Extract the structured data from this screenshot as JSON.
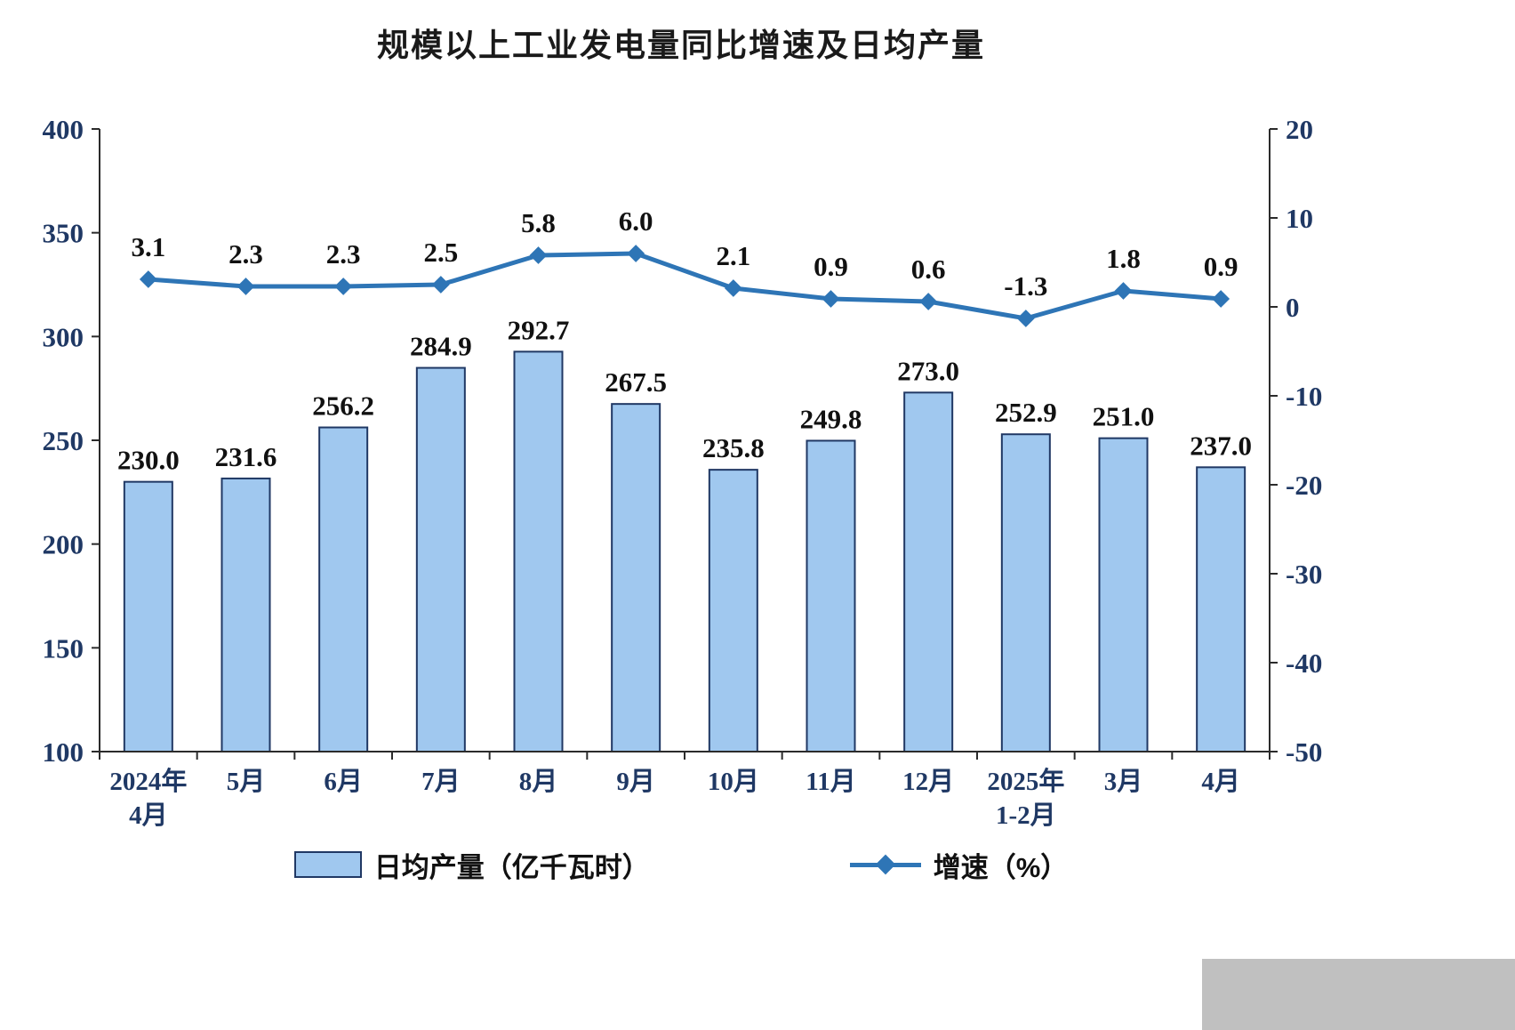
{
  "chart_data": {
    "type": "combo-bar-line",
    "title": "规模以上工业发电量同比增速及日均产量",
    "categories": [
      [
        "2024年",
        "4月"
      ],
      [
        "5月"
      ],
      [
        "6月"
      ],
      [
        "7月"
      ],
      [
        "8月"
      ],
      [
        "9月"
      ],
      [
        "10月"
      ],
      [
        "11月"
      ],
      [
        "12月"
      ],
      [
        "2025年",
        "1-2月"
      ],
      [
        "3月"
      ],
      [
        "4月"
      ]
    ],
    "series": [
      {
        "name": "日均产量（亿千瓦时）",
        "type": "bar",
        "axis": "left",
        "values": [
          230.0,
          231.6,
          256.2,
          284.9,
          292.7,
          267.5,
          235.8,
          249.8,
          273.0,
          252.9,
          251.0,
          237.0
        ]
      },
      {
        "name": "增速（%）",
        "type": "line",
        "axis": "right",
        "values": [
          3.1,
          2.3,
          2.3,
          2.5,
          5.8,
          6.0,
          2.1,
          0.9,
          0.6,
          -1.3,
          1.8,
          0.9
        ]
      }
    ],
    "left_axis": {
      "min": 100,
      "max": 400,
      "step": 50
    },
    "right_axis": {
      "min": -50,
      "max": 20,
      "step": 10
    },
    "grid": false,
    "legend_position": "bottom"
  },
  "colors": {
    "bar_fill": "#A0C8EF",
    "bar_border": "#203864",
    "line": "#2E75B6",
    "axis_text": "#1F3864",
    "label_text": "#111111",
    "title_text": "#1A1A1A",
    "axis_line": "#2B2B2B",
    "background_gray": "#C0C0C0"
  }
}
